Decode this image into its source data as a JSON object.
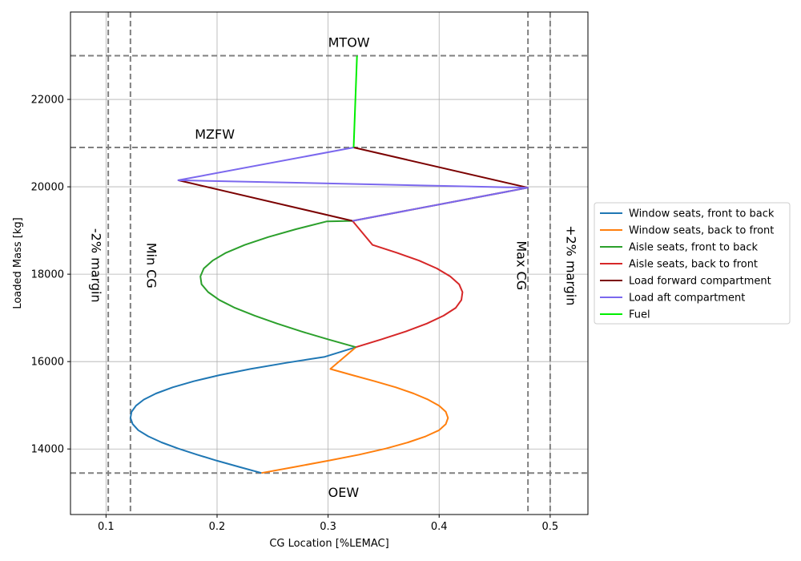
{
  "chart_data": {
    "type": "line",
    "xlabel": "CG Location [%LEMAC]",
    "ylabel": "Loaded Mass [kg]",
    "xlim": [
      0.068,
      0.534
    ],
    "ylim": [
      12500,
      24000
    ],
    "x_ticks": [
      0.1,
      0.2,
      0.3,
      0.4,
      0.5
    ],
    "x_tick_labels": [
      "0.1",
      "0.2",
      "0.3",
      "0.4",
      "0.5"
    ],
    "y_ticks": [
      14000,
      16000,
      18000,
      20000,
      22000
    ],
    "y_tick_labels": [
      "14000",
      "16000",
      "18000",
      "20000",
      "22000"
    ],
    "grid": true,
    "legend_position": "right",
    "series": [
      {
        "name": "Window seats, front to back",
        "color": "#1f77b4",
        "x": [
          0.24,
          0.22,
          0.2,
          0.182,
          0.165,
          0.15,
          0.138,
          0.129,
          0.124,
          0.122,
          0.123,
          0.127,
          0.134,
          0.145,
          0.16,
          0.179,
          0.202,
          0.23,
          0.262,
          0.297,
          0.325
        ],
        "y": [
          13450,
          13590,
          13730,
          13870,
          14010,
          14150,
          14290,
          14430,
          14570,
          14710,
          14850,
          14990,
          15130,
          15270,
          15410,
          15550,
          15690,
          15830,
          15970,
          16110,
          16330
        ]
      },
      {
        "name": "Window seats, back to front",
        "color": "#ff7f0e",
        "x": [
          0.24,
          0.27,
          0.3,
          0.328,
          0.352,
          0.372,
          0.388,
          0.4,
          0.406,
          0.408,
          0.406,
          0.4,
          0.39,
          0.377,
          0.361,
          0.342,
          0.322,
          0.302,
          0.325
        ],
        "y": [
          13450,
          13590,
          13730,
          13870,
          14010,
          14150,
          14290,
          14430,
          14570,
          14710,
          14850,
          14990,
          15130,
          15270,
          15410,
          15550,
          15690,
          15830,
          16330
        ]
      },
      {
        "name": "Aisle seats, front to back",
        "color": "#2ca02c",
        "x": [
          0.325,
          0.3,
          0.276,
          0.254,
          0.234,
          0.216,
          0.202,
          0.192,
          0.186,
          0.185,
          0.188,
          0.196,
          0.208,
          0.225,
          0.246,
          0.271,
          0.299,
          0.322
        ],
        "y": [
          16330,
          16510,
          16690,
          16870,
          17050,
          17230,
          17410,
          17590,
          17770,
          17950,
          18130,
          18310,
          18490,
          18670,
          18850,
          19030,
          19210,
          19220
        ]
      },
      {
        "name": "Aisle seats, back to front",
        "color": "#d62728",
        "x": [
          0.325,
          0.348,
          0.37,
          0.389,
          0.404,
          0.415,
          0.42,
          0.421,
          0.418,
          0.41,
          0.398,
          0.382,
          0.362,
          0.34,
          0.322
        ],
        "y": [
          16330,
          16510,
          16690,
          16870,
          17050,
          17230,
          17410,
          17590,
          17770,
          17950,
          18130,
          18310,
          18490,
          18670,
          19220
        ]
      },
      {
        "name": "Load forward compartment",
        "color": "#7b0000",
        "x": [
          0.165,
          0.322,
          0.48,
          0.323
        ],
        "y": [
          20150,
          19220,
          19980,
          20900
        ]
      },
      {
        "name": "Load aft compartment",
        "color": "#7b68ee",
        "x": [
          0.322,
          0.48,
          0.165,
          0.323
        ],
        "y": [
          19220,
          19980,
          20150,
          20900
        ]
      },
      {
        "name": "Fuel",
        "color": "#00ee00",
        "x": [
          0.323,
          0.326
        ],
        "y": [
          20900,
          23000
        ]
      }
    ],
    "reference_lines": {
      "vertical": [
        0.102,
        0.122,
        0.48,
        0.5
      ],
      "horizontal": [
        13450,
        20900,
        23000
      ]
    },
    "annotations": [
      {
        "text": "MTOW",
        "x": 0.3,
        "y": 23200,
        "rotation": 0
      },
      {
        "text": "MZFW",
        "x": 0.18,
        "y": 21100,
        "rotation": 0
      },
      {
        "text": "OEW",
        "x": 0.3,
        "y": 12900,
        "rotation": 0
      },
      {
        "text": "-2% margin",
        "x": 0.087,
        "y": 18200,
        "rotation": 90
      },
      {
        "text": "Min CG",
        "x": 0.137,
        "y": 18200,
        "rotation": 90
      },
      {
        "text": "Max CG",
        "x": 0.47,
        "y": 18200,
        "rotation": 90
      },
      {
        "text": "+2% margin",
        "x": 0.515,
        "y": 18200,
        "rotation": 90
      }
    ]
  }
}
